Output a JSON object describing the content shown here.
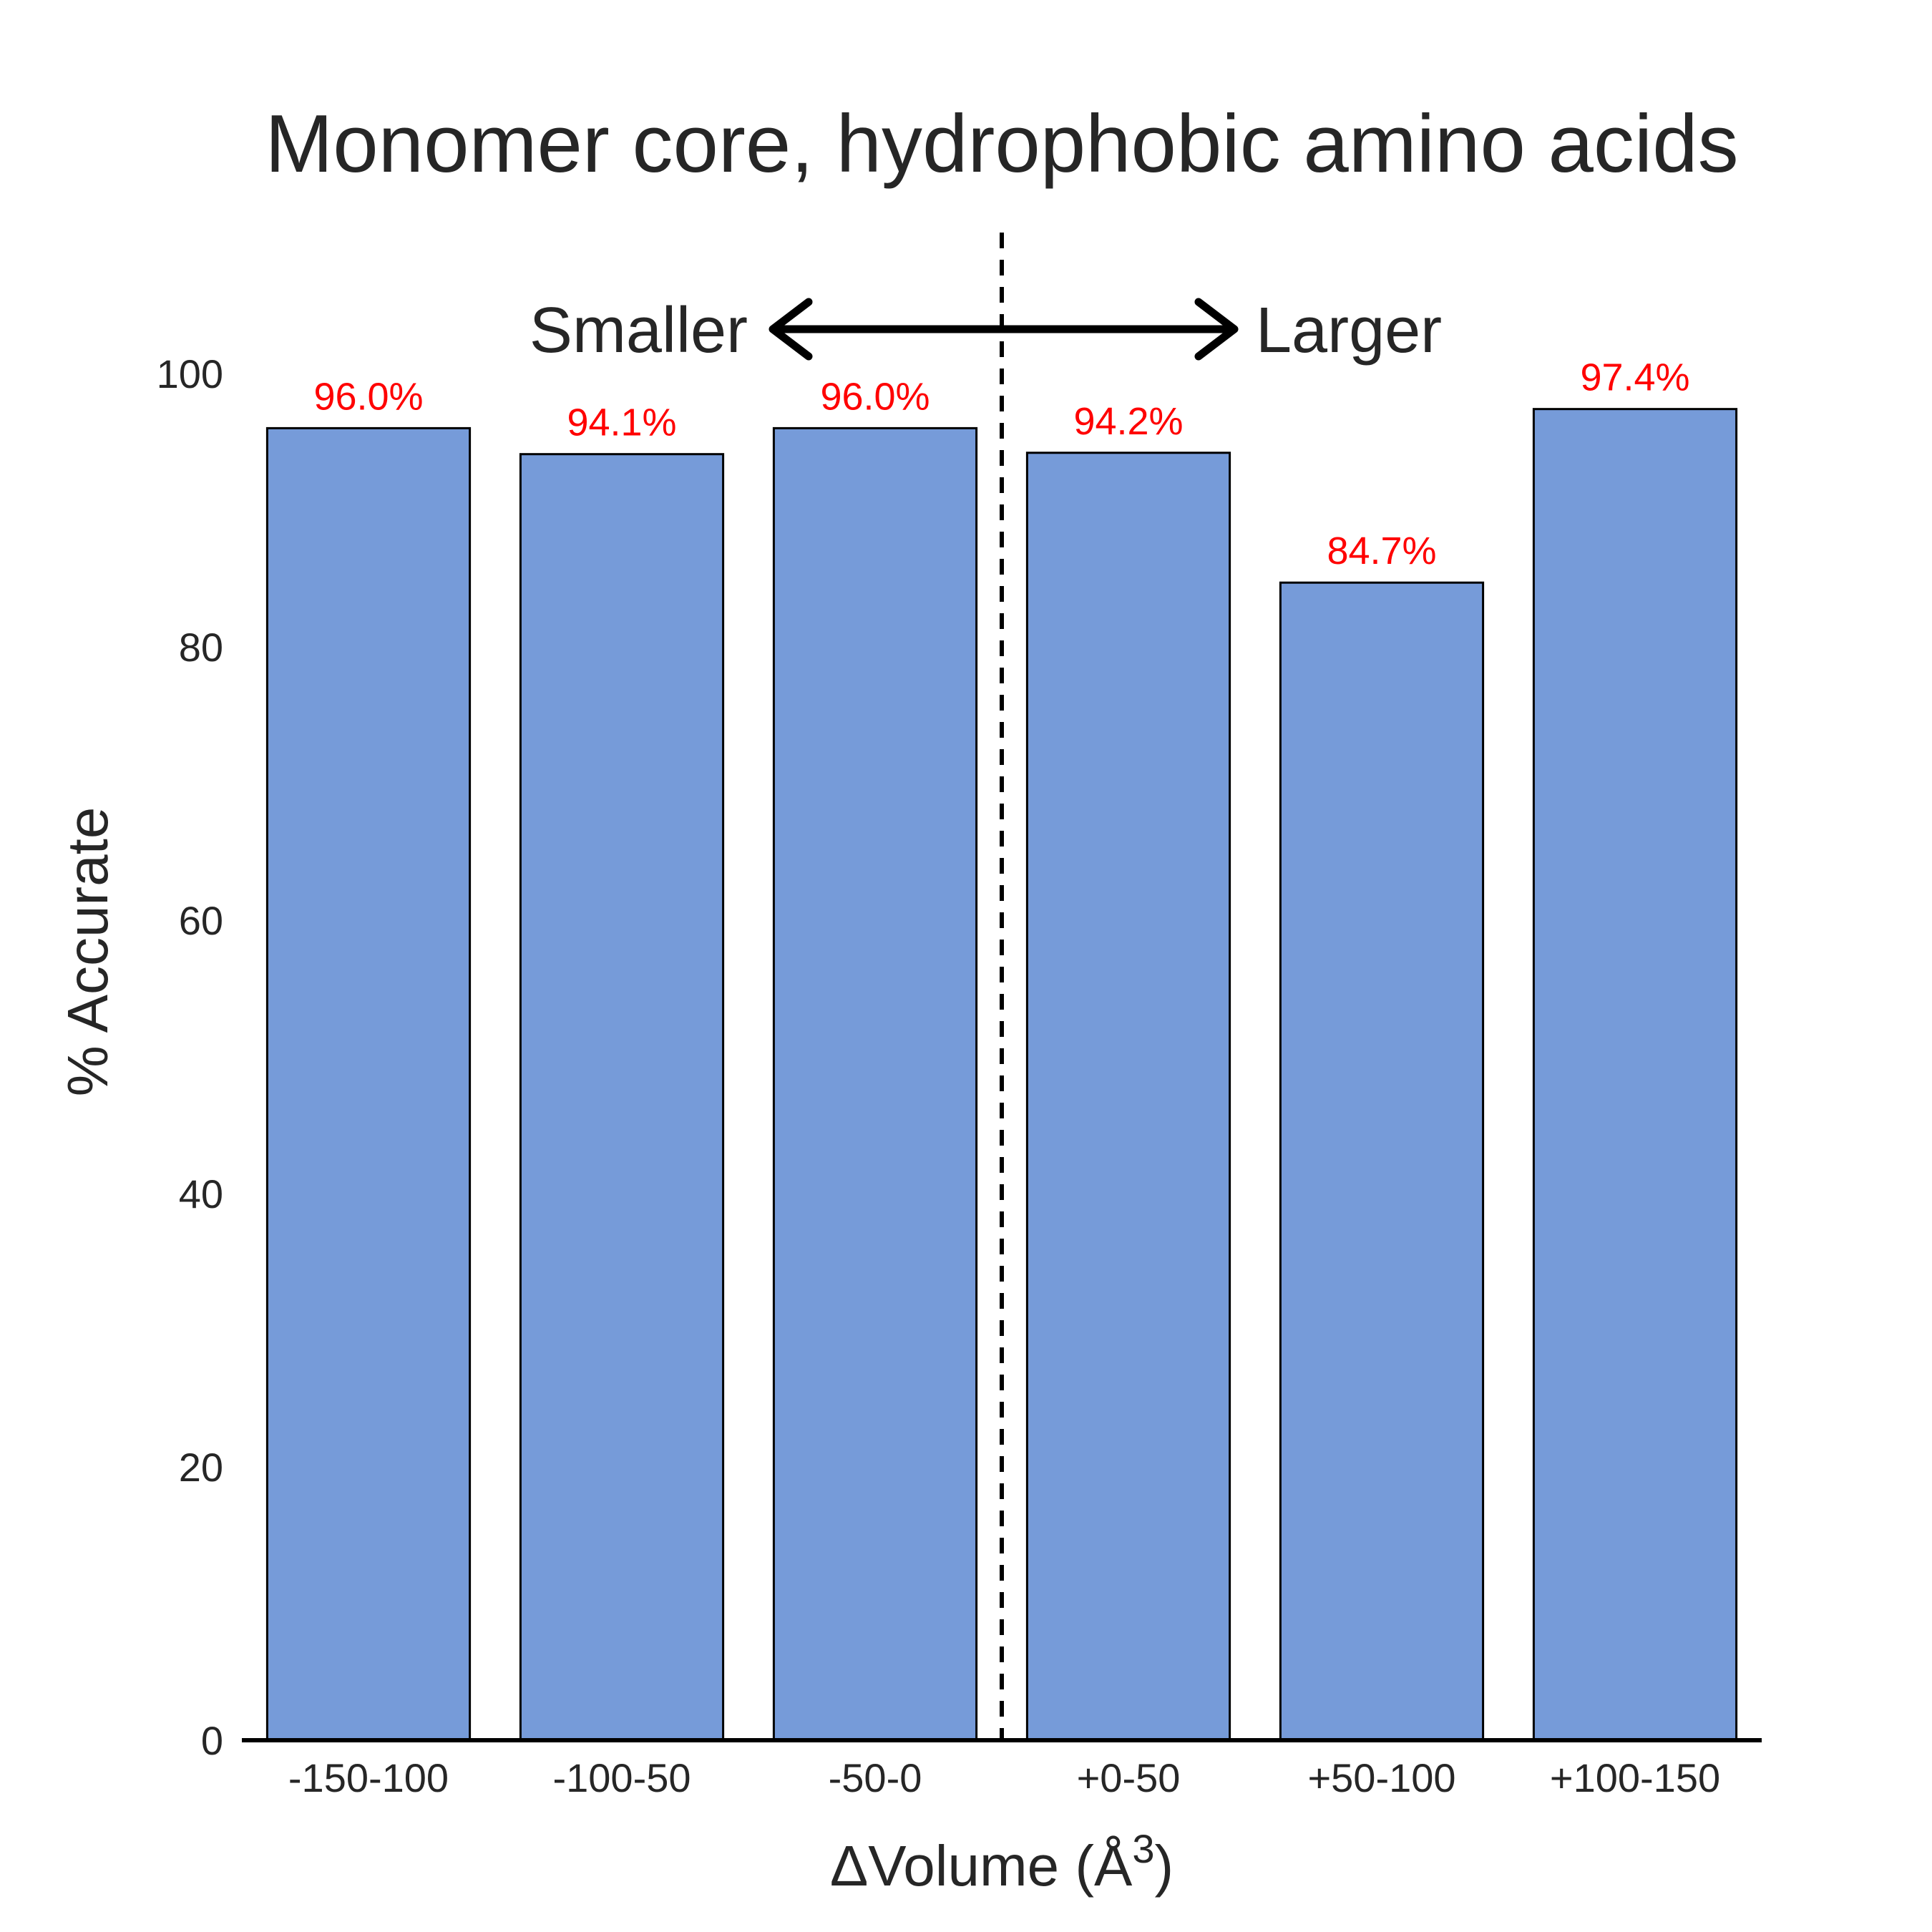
{
  "chart_data": {
    "type": "bar",
    "title": "Monomer core, hydrophobic amino acids",
    "xlabel": "ΔVolume (Å",
    "xlabel_superscript": "3",
    "xlabel_suffix": ")",
    "ylabel": "% Accurate",
    "categories": [
      "-150-100",
      "-100-50",
      "-50-0",
      "+0-50",
      "+50-100",
      "+100-150"
    ],
    "values": [
      96.0,
      94.1,
      96.0,
      94.2,
      84.7,
      97.4
    ],
    "data_labels": [
      "96.0%",
      "94.1%",
      "96.0%",
      "94.2%",
      "84.7%",
      "97.4%"
    ],
    "ylim": [
      0,
      110
    ],
    "yticks": [
      0,
      20,
      40,
      60,
      80,
      100
    ],
    "grid": false,
    "bar_color": "#769BD9",
    "label_color": "#ff0000",
    "divider": "dashed line between -50-0 and +0-50",
    "direction_labels": {
      "left": "Smaller",
      "right": "Larger"
    }
  }
}
